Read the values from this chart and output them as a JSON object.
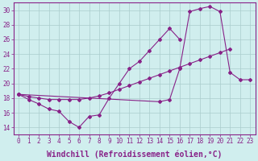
{
  "background_color": "#d0eeee",
  "line_color": "#882288",
  "grid_color": "#aacccc",
  "xlabel": "Windchill (Refroidissement éolien,°C)",
  "xlabel_fontsize": 7.0,
  "tick_fontsize": 5.5,
  "xlim": [
    -0.5,
    23.5
  ],
  "ylim": [
    13,
    31
  ],
  "yticks": [
    14,
    16,
    18,
    20,
    22,
    24,
    26,
    28,
    30
  ],
  "xticks": [
    0,
    1,
    2,
    3,
    4,
    5,
    6,
    7,
    8,
    9,
    10,
    11,
    12,
    13,
    14,
    15,
    16,
    17,
    18,
    19,
    20,
    21,
    22,
    23
  ],
  "line1_x": [
    0,
    1,
    2,
    3,
    4,
    5,
    6,
    7,
    8,
    9,
    10,
    11,
    12,
    13,
    14,
    15,
    16
  ],
  "line1_y": [
    18.5,
    17.8,
    17.2,
    16.5,
    16.2,
    14.8,
    14.0,
    15.5,
    15.7,
    18.0,
    20.0,
    22.0,
    23.0,
    24.5,
    26.0,
    27.5,
    26.0
  ],
  "line2_x": [
    0,
    1,
    2,
    3,
    4,
    5,
    6,
    7,
    8,
    9,
    10,
    11,
    12,
    13,
    14,
    15,
    16,
    17,
    18,
    19,
    20,
    21,
    22,
    23
  ],
  "line2_y": [
    18.5,
    18.2,
    18.0,
    17.8,
    17.8,
    17.8,
    17.8,
    18.0,
    18.3,
    18.7,
    19.2,
    19.7,
    20.2,
    20.7,
    21.2,
    21.7,
    22.2,
    22.7,
    23.2,
    23.7,
    24.2,
    24.7,
    null,
    null
  ],
  "line3_x": [
    0,
    14,
    15,
    16,
    17,
    18,
    19,
    20,
    21,
    22,
    23
  ],
  "line3_y": [
    18.5,
    17.5,
    17.8,
    22.0,
    29.8,
    30.2,
    30.5,
    29.8,
    21.5,
    20.5,
    20.5
  ]
}
